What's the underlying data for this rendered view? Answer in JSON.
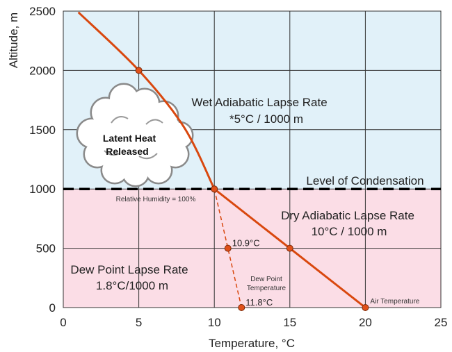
{
  "chart_data": {
    "type": "line",
    "xlabel": "Temperature, °C",
    "ylabel": "Altitude, m",
    "xlim": [
      0,
      25
    ],
    "ylim": [
      0,
      2500
    ],
    "x_ticks": [
      "0",
      "5",
      "10",
      "15",
      "20",
      "25"
    ],
    "y_ticks": [
      "0",
      "500",
      "1000",
      "1500",
      "2000",
      "2500"
    ],
    "grid": true,
    "colors": {
      "wet_zone": "#e1f1f9",
      "dry_zone": "#fbdde6",
      "curve": "#d9480f",
      "marker": "#e0501a",
      "grid": "#333333",
      "condensation": "#000000"
    },
    "series": [
      {
        "kind": "air-temperature-curve",
        "x": [
          1,
          5,
          8,
          10,
          15,
          20
        ],
        "y": [
          2490,
          2000,
          1520,
          1000,
          500,
          0
        ]
      },
      {
        "kind": "dew-point-line",
        "x": [
          10,
          10.9,
          11.8
        ],
        "y": [
          1000,
          500,
          0
        ]
      }
    ],
    "points": [
      {
        "x": 5,
        "y": 2000,
        "label": ""
      },
      {
        "x": 10,
        "y": 1000,
        "label": ""
      },
      {
        "x": 15,
        "y": 500,
        "label": ""
      },
      {
        "x": 20,
        "y": 0,
        "label": "Air Temperature"
      },
      {
        "x": 10.9,
        "y": 500,
        "label": "10.9°C"
      },
      {
        "x": 11.8,
        "y": 0,
        "label": "11.8°C"
      }
    ],
    "condensation_level": 1000,
    "annotations": {
      "wet_title": "Wet Adiabatic Lapse Rate",
      "wet_rate": "*5°C / 1000 m",
      "condensation": "Level of Condensation",
      "humidity": "Relative Humidity = 100%",
      "dry_title": "Dry Adiabatic Lapse Rate",
      "dry_rate": "10°C / 1000 m",
      "dew_title": "Dew Point Lapse Rate",
      "dew_rate": "1.8°C/1000 m",
      "dew_point_1": "Dew Point",
      "dew_point_2": "Temperature",
      "cloud_1": "Latent Heat",
      "cloud_2": "Released"
    }
  }
}
